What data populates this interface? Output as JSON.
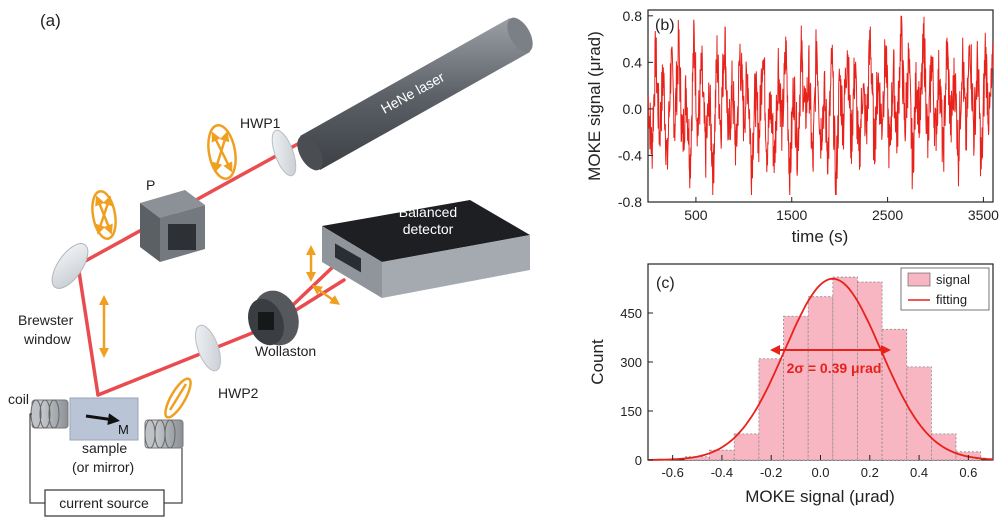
{
  "panel_a": {
    "label": "(a)",
    "components": {
      "laser": "HeNe laser",
      "hwp1": "HWP1",
      "polarizer": "P",
      "balanced_detector_line1": "Balanced",
      "balanced_detector_line2": "detector",
      "brewster_line1": "Brewster",
      "brewster_line2": "window",
      "wollaston": "Wollaston",
      "hwp2": "HWP2",
      "coil": "coil",
      "magnetization": "M",
      "sample_line1": "sample",
      "sample_line2": "(or mirror)",
      "current_source": "current source"
    },
    "colors": {
      "beam": "#e8383d",
      "polarization": "#f0a020",
      "metal": "#6f747a"
    }
  },
  "chart_data": [
    {
      "panel_label": "(b)",
      "type": "line",
      "title": "",
      "xlabel": "time (s)",
      "ylabel": "MOKE signal (μrad)",
      "xlim": [
        0,
        3600
      ],
      "ylim": [
        -0.8,
        0.85
      ],
      "x_ticks": [
        500,
        1500,
        2500,
        3500
      ],
      "y_ticks": [
        -0.8,
        -0.4,
        0.0,
        0.4,
        0.8
      ],
      "x_tick_labels": [
        "500",
        "1500",
        "2500",
        "3500"
      ],
      "y_tick_labels": [
        "-0.8",
        "-0.4",
        "0.0",
        "0.4",
        "0.8"
      ],
      "grid": false,
      "series": [
        {
          "color": "#e8211b",
          "x": [
            0,
            40,
            80,
            120,
            160,
            200,
            240,
            280,
            320,
            360,
            400,
            440,
            480,
            520,
            560,
            600,
            640,
            680,
            720,
            760,
            800,
            840,
            880,
            920,
            960,
            1000,
            1040,
            1080,
            1120,
            1160,
            1200,
            1240,
            1280,
            1320,
            1360,
            1400,
            1440,
            1480,
            1520,
            1560,
            1600,
            1640,
            1680,
            1720,
            1760,
            1800,
            1840,
            1880,
            1920,
            1960,
            2000,
            2040,
            2080,
            2120,
            2160,
            2200,
            2240,
            2280,
            2320,
            2360,
            2400,
            2440,
            2480,
            2520,
            2560,
            2600,
            2640,
            2680,
            2720,
            2760,
            2800,
            2840,
            2880,
            2920,
            2960,
            3000,
            3040,
            3080,
            3120,
            3160,
            3200,
            3240,
            3280,
            3320,
            3360,
            3400,
            3440,
            3480,
            3520,
            3560,
            3600
          ],
          "y": [
            0.12,
            -0.35,
            0.48,
            -0.22,
            0.3,
            -0.5,
            0.41,
            -0.12,
            0.55,
            -0.3,
            0.18,
            -0.46,
            0.62,
            -0.2,
            0.35,
            -0.4,
            0.1,
            -0.55,
            0.45,
            -0.15,
            0.66,
            -0.28,
            0.2,
            -0.38,
            0.5,
            -0.1,
            0.32,
            -0.48,
            0.15,
            -0.25,
            0.58,
            -0.33,
            0.05,
            -0.44,
            0.4,
            -0.18,
            0.52,
            -0.62,
            0.22,
            -0.36,
            0.47,
            -0.08,
            0.3,
            -0.52,
            0.6,
            -0.24,
            0.12,
            -0.4,
            0.44,
            -0.7,
            0.26,
            -0.14,
            0.56,
            -0.3,
            0.38,
            -0.46,
            0.2,
            -0.2,
            0.64,
            -0.35,
            0.28,
            -0.12,
            0.5,
            -0.42,
            0.34,
            -0.26,
            0.7,
            -0.18,
            0.42,
            -0.5,
            0.24,
            -0.08,
            0.6,
            -0.34,
            0.46,
            -0.22,
            0.36,
            -0.44,
            0.54,
            -0.16,
            0.3,
            -0.4,
            0.48,
            -0.28,
            0.62,
            -0.2,
            0.4,
            -0.55,
            0.52,
            -0.12,
            0.35
          ]
        }
      ]
    },
    {
      "panel_label": "(c)",
      "type": "bar",
      "title": "",
      "xlabel": "MOKE signal (μrad)",
      "ylabel": "Count",
      "xlim": [
        -0.7,
        0.7
      ],
      "ylim": [
        0,
        600
      ],
      "x_ticks": [
        -0.6,
        -0.4,
        -0.2,
        0.0,
        0.2,
        0.4,
        0.6
      ],
      "y_ticks": [
        0,
        150,
        300,
        450
      ],
      "x_tick_labels": [
        "-0.6",
        "-0.4",
        "-0.2",
        "0.0",
        "0.2",
        "0.4",
        "0.6"
      ],
      "y_tick_labels": [
        "0",
        "150",
        "300",
        "450"
      ],
      "grid": false,
      "bin_edges": [
        -0.55,
        -0.45,
        -0.35,
        -0.25,
        -0.15,
        -0.05,
        0.05,
        0.15,
        0.25,
        0.35,
        0.45,
        0.55,
        0.65
      ],
      "counts": [
        10,
        30,
        80,
        310,
        440,
        500,
        560,
        545,
        400,
        285,
        80,
        25
      ],
      "fit": {
        "type": "gaussian",
        "amplitude": 555,
        "mean": 0.05,
        "sigma": 0.195
      },
      "annotation": "2σ = 0.39 μrad",
      "legend_position": "top-right",
      "legend": [
        {
          "label": "signal",
          "color": "#f7b6c2"
        },
        {
          "label": "fitting",
          "color": "#e8211b"
        }
      ]
    }
  ]
}
